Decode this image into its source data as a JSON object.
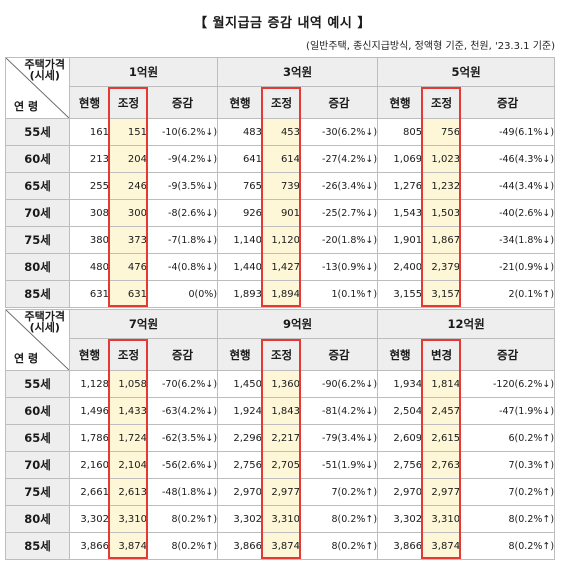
{
  "title": "【 월지급금 증감 내역 예시 】",
  "subtitle": "(일반주택, 종신지급방식, 정액형 기준, 천원, '23.3.1 기준)",
  "corner": {
    "price_label_line1": "주택가격",
    "price_label_line2": "(시세)",
    "age_label": "연 령"
  },
  "ages": [
    "55세",
    "60세",
    "65세",
    "70세",
    "75세",
    "80세",
    "85세"
  ],
  "blocks": [
    {
      "groups": [
        {
          "price": "1억원",
          "col_labels": [
            "현행",
            "조정",
            "증감"
          ],
          "current": [
            "161",
            "213",
            "255",
            "308",
            "380",
            "480",
            "631"
          ],
          "adjusted": [
            "151",
            "204",
            "246",
            "300",
            "373",
            "476",
            "631"
          ],
          "change": [
            "-10(6.2%↓)",
            "-9(4.2%↓)",
            "-9(3.5%↓)",
            "-8(2.6%↓)",
            "-7(1.8%↓)",
            "-4(0.8%↓)",
            "0(0%)"
          ]
        },
        {
          "price": "3억원",
          "col_labels": [
            "현행",
            "조정",
            "증감"
          ],
          "current": [
            "483",
            "641",
            "765",
            "926",
            "1,140",
            "1,440",
            "1,893"
          ],
          "adjusted": [
            "453",
            "614",
            "739",
            "901",
            "1,120",
            "1,427",
            "1,894"
          ],
          "change": [
            "-30(6.2%↓)",
            "-27(4.2%↓)",
            "-26(3.4%↓)",
            "-25(2.7%↓)",
            "-20(1.8%↓)",
            "-13(0.9%↓)",
            "1(0.1%↑)"
          ]
        },
        {
          "price": "5억원",
          "col_labels": [
            "현행",
            "조정",
            "증감"
          ],
          "current": [
            "805",
            "1,069",
            "1,276",
            "1,543",
            "1,901",
            "2,400",
            "3,155"
          ],
          "adjusted": [
            "756",
            "1,023",
            "1,232",
            "1,503",
            "1,867",
            "2,379",
            "3,157"
          ],
          "change": [
            "-49(6.1%↓)",
            "-46(4.3%↓)",
            "-44(3.4%↓)",
            "-40(2.6%↓)",
            "-34(1.8%↓)",
            "-21(0.9%↓)",
            "2(0.1%↑)"
          ]
        }
      ]
    },
    {
      "groups": [
        {
          "price": "7억원",
          "col_labels": [
            "현행",
            "조정",
            "증감"
          ],
          "current": [
            "1,128",
            "1,496",
            "1,786",
            "2,160",
            "2,661",
            "3,302",
            "3,866"
          ],
          "adjusted": [
            "1,058",
            "1,433",
            "1,724",
            "2,104",
            "2,613",
            "3,310",
            "3,874"
          ],
          "change": [
            "-70(6.2%↓)",
            "-63(4.2%↓)",
            "-62(3.5%↓)",
            "-56(2.6%↓)",
            "-48(1.8%↓)",
            "8(0.2%↑)",
            "8(0.2%↑)"
          ]
        },
        {
          "price": "9억원",
          "col_labels": [
            "현행",
            "조정",
            "증감"
          ],
          "current": [
            "1,450",
            "1,924",
            "2,296",
            "2,756",
            "2,970",
            "3,302",
            "3,866"
          ],
          "adjusted": [
            "1,360",
            "1,843",
            "2,217",
            "2,705",
            "2,977",
            "3,310",
            "3,874"
          ],
          "change": [
            "-90(6.2%↓)",
            "-81(4.2%↓)",
            "-79(3.4%↓)",
            "-51(1.9%↓)",
            "7(0.2%↑)",
            "8(0.2%↑)",
            "8(0.2%↑)"
          ]
        },
        {
          "price": "12억원",
          "col_labels": [
            "현행",
            "변경",
            "증감"
          ],
          "current": [
            "1,934",
            "2,504",
            "2,609",
            "2,756",
            "2,970",
            "3,302",
            "3,866"
          ],
          "adjusted": [
            "1,814",
            "2,457",
            "2,615",
            "2,763",
            "2,977",
            "3,310",
            "3,874"
          ],
          "change": [
            "-120(6.2%↓)",
            "-47(1.9%↓)",
            "6(0.2%↑)",
            "7(0.3%↑)",
            "7(0.2%↑)",
            "8(0.2%↑)",
            "8(0.2%↑)"
          ]
        }
      ]
    }
  ]
}
